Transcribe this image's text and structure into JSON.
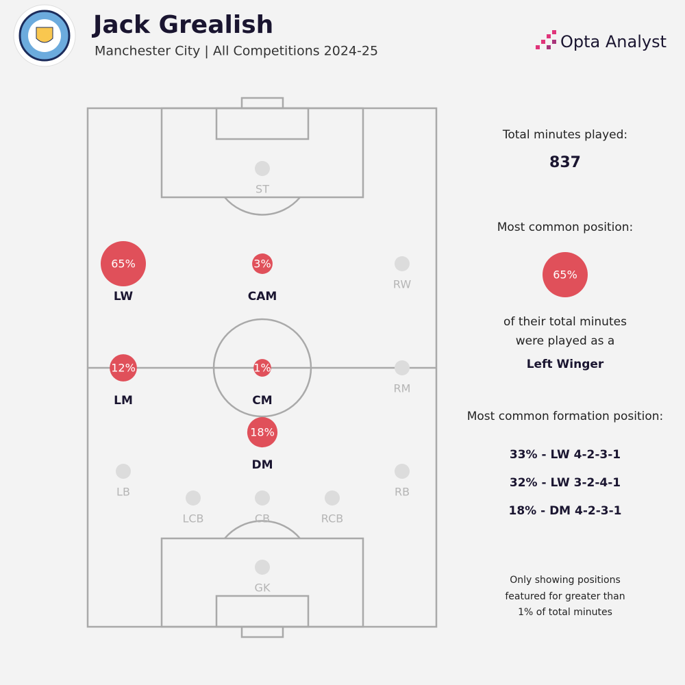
{
  "header": {
    "title": "Jack Grealish",
    "subtitle": "Manchester City | All Competitions 2024-25",
    "brand": "Opta Analyst"
  },
  "positions": [
    {
      "label": "ST",
      "pct": null
    },
    {
      "label": "LW",
      "pct": 65,
      "pct_label": "65%"
    },
    {
      "label": "CAM",
      "pct": 3,
      "pct_label": "3%"
    },
    {
      "label": "RW",
      "pct": null
    },
    {
      "label": "LM",
      "pct": 12,
      "pct_label": "12%"
    },
    {
      "label": "CM",
      "pct": 1,
      "pct_label": "1%"
    },
    {
      "label": "RM",
      "pct": null
    },
    {
      "label": "DM",
      "pct": 18,
      "pct_label": "18%"
    },
    {
      "label": "LB",
      "pct": null
    },
    {
      "label": "RB",
      "pct": null
    },
    {
      "label": "LCB",
      "pct": null
    },
    {
      "label": "CB",
      "pct": null
    },
    {
      "label": "RCB",
      "pct": null
    },
    {
      "label": "GK",
      "pct": null
    }
  ],
  "panel": {
    "minutes_label": "Total minutes played:",
    "minutes": 837,
    "common_label": "Most common position:",
    "common_pct": 65,
    "common_pct_label": "65%",
    "common_text": [
      "of their total minutes",
      "were played as a"
    ],
    "common_position": "Left Winger",
    "formation_label": "Most common formation position:",
    "formations": [
      "33% - LW 4-2-3-1",
      "32% - LW 3-2-4-1",
      "18% - DM 4-2-3-1"
    ],
    "footnote": [
      "Only showing positions",
      "featured for greater than",
      "1% of total minutes"
    ]
  }
}
